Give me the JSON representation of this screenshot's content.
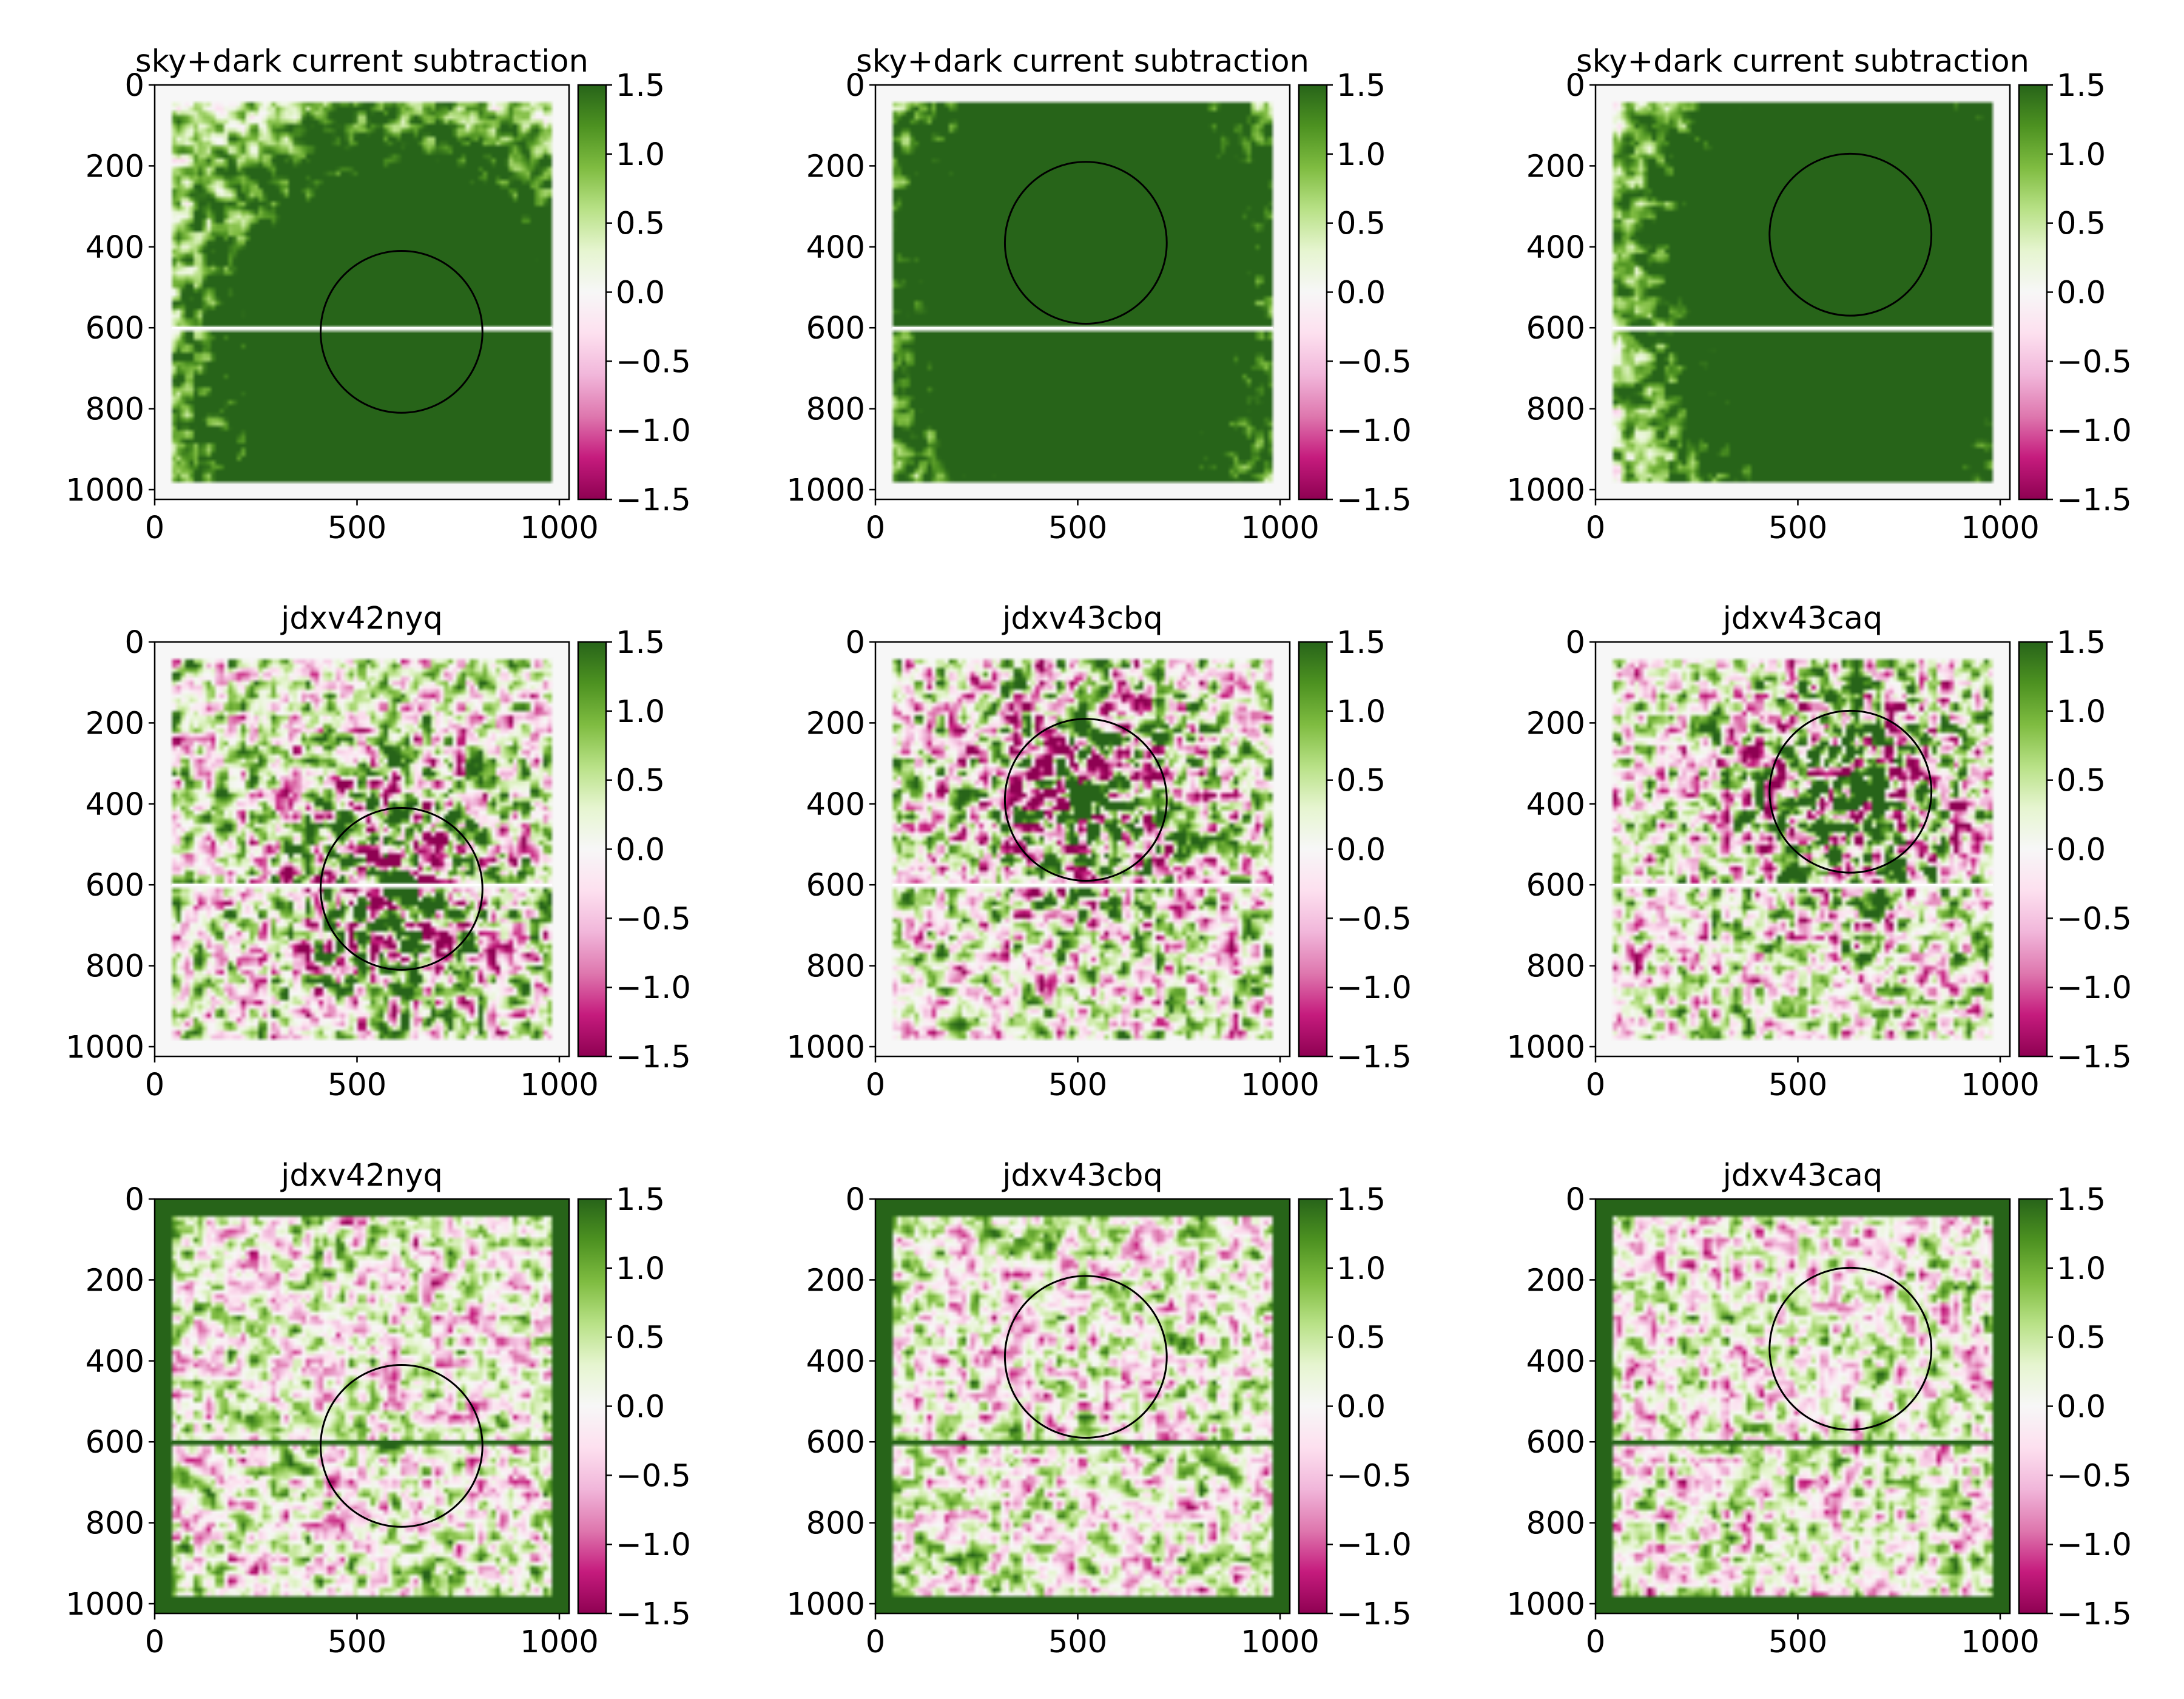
{
  "figure": {
    "colormap": "PiYG",
    "colors": {
      "pink_end": "#8e0152",
      "mid": "#f7f7f7",
      "green_end": "#276419",
      "circle": "#000000"
    }
  },
  "chart_data": [
    {
      "type": "heatmap",
      "title": "sky+dark current subtraction",
      "xticks": [
        "0",
        "500",
        "1000"
      ],
      "yticks": [
        "0",
        "200",
        "400",
        "600",
        "800",
        "1000"
      ],
      "xlim": [
        0,
        1024
      ],
      "ylim": [
        1024,
        0
      ],
      "colorbar": {
        "ticks": [
          "−1.5",
          "−1.0",
          "−0.5",
          "0.0",
          "0.5",
          "1.0",
          "1.5"
        ],
        "range": [
          -1.5,
          1.5
        ]
      },
      "circle": {
        "center": [
          610,
          610
        ],
        "radius": 200
      },
      "artifact_row": 600,
      "pattern": "saturated-center",
      "frame": "none"
    },
    {
      "type": "heatmap",
      "title": "sky+dark current subtraction",
      "xticks": [
        "0",
        "500",
        "1000"
      ],
      "yticks": [
        "0",
        "200",
        "400",
        "600",
        "800",
        "1000"
      ],
      "xlim": [
        0,
        1024
      ],
      "ylim": [
        1024,
        0
      ],
      "colorbar": {
        "ticks": [
          "−1.5",
          "−1.0",
          "−0.5",
          "0.0",
          "0.5",
          "1.0",
          "1.5"
        ],
        "range": [
          -1.5,
          1.5
        ]
      },
      "circle": {
        "center": [
          520,
          390
        ],
        "radius": 200
      },
      "artifact_row": 600,
      "pattern": "saturated-center",
      "frame": "none"
    },
    {
      "type": "heatmap",
      "title": "sky+dark current subtraction",
      "xticks": [
        "0",
        "500",
        "1000"
      ],
      "yticks": [
        "0",
        "200",
        "400",
        "600",
        "800",
        "1000"
      ],
      "xlim": [
        0,
        1024
      ],
      "ylim": [
        1024,
        0
      ],
      "colorbar": {
        "ticks": [
          "−1.5",
          "−1.0",
          "−0.5",
          "0.0",
          "0.5",
          "1.0",
          "1.5"
        ],
        "range": [
          -1.5,
          1.5
        ]
      },
      "circle": {
        "center": [
          630,
          370
        ],
        "radius": 200
      },
      "artifact_row": 600,
      "pattern": "saturated-center",
      "frame": "none"
    },
    {
      "type": "heatmap",
      "title": "jdxv42nyq",
      "xticks": [
        "0",
        "500",
        "1000"
      ],
      "yticks": [
        "0",
        "200",
        "400",
        "600",
        "800",
        "1000"
      ],
      "xlim": [
        0,
        1024
      ],
      "ylim": [
        1024,
        0
      ],
      "colorbar": {
        "ticks": [
          "−1.5",
          "−1.0",
          "−0.5",
          "0.0",
          "0.5",
          "1.0",
          "1.5"
        ],
        "range": [
          -1.5,
          1.5
        ]
      },
      "circle": {
        "center": [
          610,
          610
        ],
        "radius": 200
      },
      "artifact_row": 600,
      "pattern": "noise-center-blob",
      "frame": "none"
    },
    {
      "type": "heatmap",
      "title": "jdxv43cbq",
      "xticks": [
        "0",
        "500",
        "1000"
      ],
      "yticks": [
        "0",
        "200",
        "400",
        "600",
        "800",
        "1000"
      ],
      "xlim": [
        0,
        1024
      ],
      "ylim": [
        1024,
        0
      ],
      "colorbar": {
        "ticks": [
          "−1.5",
          "−1.0",
          "−0.5",
          "0.0",
          "0.5",
          "1.0",
          "1.5"
        ],
        "range": [
          -1.5,
          1.5
        ]
      },
      "circle": {
        "center": [
          520,
          390
        ],
        "radius": 200
      },
      "artifact_row": 600,
      "pattern": "noise-center-blob",
      "frame": "none"
    },
    {
      "type": "heatmap",
      "title": "jdxv43caq",
      "xticks": [
        "0",
        "500",
        "1000"
      ],
      "yticks": [
        "0",
        "200",
        "400",
        "600",
        "800",
        "1000"
      ],
      "xlim": [
        0,
        1024
      ],
      "ylim": [
        1024,
        0
      ],
      "colorbar": {
        "ticks": [
          "−1.5",
          "−1.0",
          "−0.5",
          "0.0",
          "0.5",
          "1.0",
          "1.5"
        ],
        "range": [
          -1.5,
          1.5
        ]
      },
      "circle": {
        "center": [
          630,
          370
        ],
        "radius": 200
      },
      "artifact_row": 600,
      "pattern": "noise-center-blob",
      "frame": "none"
    },
    {
      "type": "heatmap",
      "title": "jdxv42nyq",
      "xticks": [
        "0",
        "500",
        "1000"
      ],
      "yticks": [
        "0",
        "200",
        "400",
        "600",
        "800",
        "1000"
      ],
      "xlim": [
        0,
        1024
      ],
      "ylim": [
        1024,
        0
      ],
      "colorbar": {
        "ticks": [
          "−1.5",
          "−1.0",
          "−0.5",
          "0.0",
          "0.5",
          "1.0",
          "1.5"
        ],
        "range": [
          -1.5,
          1.5
        ]
      },
      "circle": {
        "center": [
          610,
          610
        ],
        "radius": 200
      },
      "artifact_row": 600,
      "pattern": "residual",
      "frame": "green-border"
    },
    {
      "type": "heatmap",
      "title": "jdxv43cbq",
      "xticks": [
        "0",
        "500",
        "1000"
      ],
      "yticks": [
        "0",
        "200",
        "400",
        "600",
        "800",
        "1000"
      ],
      "xlim": [
        0,
        1024
      ],
      "ylim": [
        1024,
        0
      ],
      "colorbar": {
        "ticks": [
          "−1.5",
          "−1.0",
          "−0.5",
          "0.0",
          "0.5",
          "1.0",
          "1.5"
        ],
        "range": [
          -1.5,
          1.5
        ]
      },
      "circle": {
        "center": [
          520,
          390
        ],
        "radius": 200
      },
      "artifact_row": 600,
      "pattern": "residual",
      "frame": "green-border"
    },
    {
      "type": "heatmap",
      "title": "jdxv43caq",
      "xticks": [
        "0",
        "500",
        "1000"
      ],
      "yticks": [
        "0",
        "200",
        "400",
        "600",
        "800",
        "1000"
      ],
      "xlim": [
        0,
        1024
      ],
      "ylim": [
        1024,
        0
      ],
      "colorbar": {
        "ticks": [
          "−1.5",
          "−1.0",
          "−0.5",
          "0.0",
          "0.5",
          "1.0",
          "1.5"
        ],
        "range": [
          -1.5,
          1.5
        ]
      },
      "circle": {
        "center": [
          630,
          370
        ],
        "radius": 200
      },
      "artifact_row": 600,
      "pattern": "residual",
      "frame": "green-border"
    }
  ]
}
